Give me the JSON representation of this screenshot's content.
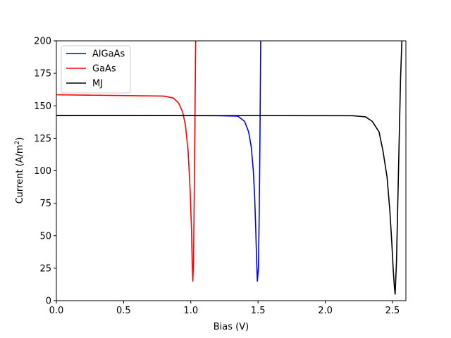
{
  "chart_data": {
    "type": "line",
    "xlabel": "Bias (V)",
    "ylabel_main": "Current (A/m",
    "ylabel_sup": "2",
    "ylabel_close": ")",
    "xlim": [
      0,
      2.6
    ],
    "ylim": [
      0,
      200
    ],
    "xticks": [
      0.0,
      0.5,
      1.0,
      1.5,
      2.0,
      2.5
    ],
    "xtick_labels": [
      "0.0",
      "0.5",
      "1.0",
      "1.5",
      "2.0",
      "2.5"
    ],
    "yticks": [
      0,
      25,
      50,
      75,
      100,
      125,
      150,
      175,
      200
    ],
    "ytick_labels": [
      "0",
      "25",
      "50",
      "75",
      "100",
      "125",
      "150",
      "175",
      "200"
    ],
    "grid": false,
    "legend_position": "top-left",
    "series": [
      {
        "name": "AlGaAs",
        "color": "#0000ff",
        "points": [
          [
            0,
            142.5
          ],
          [
            1.2,
            142.4
          ],
          [
            1.35,
            142.0
          ],
          [
            1.4,
            138.0
          ],
          [
            1.43,
            130.0
          ],
          [
            1.45,
            118.0
          ],
          [
            1.465,
            100.0
          ],
          [
            1.475,
            80.0
          ],
          [
            1.483,
            55.0
          ],
          [
            1.49,
            30.0
          ],
          [
            1.495,
            15.0
          ],
          [
            1.503,
            25.0
          ],
          [
            1.508,
            60.0
          ],
          [
            1.514,
            120.0
          ],
          [
            1.52,
            200.0
          ]
        ]
      },
      {
        "name": "GaAs",
        "color": "#ff0000",
        "points": [
          [
            0,
            158.5
          ],
          [
            0.8,
            157.5
          ],
          [
            0.87,
            156.0
          ],
          [
            0.91,
            152.0
          ],
          [
            0.94,
            145.0
          ],
          [
            0.96,
            135.0
          ],
          [
            0.98,
            115.0
          ],
          [
            0.995,
            85.0
          ],
          [
            1.005,
            55.0
          ],
          [
            1.01,
            30.0
          ],
          [
            1.015,
            15.0
          ],
          [
            1.02,
            30.0
          ],
          [
            1.025,
            75.0
          ],
          [
            1.03,
            130.0
          ],
          [
            1.036,
            200.0
          ]
        ]
      },
      {
        "name": "MJ",
        "color": "#000000",
        "points": [
          [
            0,
            142.5
          ],
          [
            2.2,
            142.4
          ],
          [
            2.3,
            141.5
          ],
          [
            2.35,
            138.0
          ],
          [
            2.4,
            130.0
          ],
          [
            2.43,
            115.0
          ],
          [
            2.46,
            95.0
          ],
          [
            2.48,
            70.0
          ],
          [
            2.495,
            45.0
          ],
          [
            2.505,
            25.0
          ],
          [
            2.515,
            10.0
          ],
          [
            2.52,
            5.0
          ],
          [
            2.53,
            30.0
          ],
          [
            2.545,
            100.0
          ],
          [
            2.56,
            170.0
          ],
          [
            2.57,
            200.0
          ]
        ]
      }
    ]
  }
}
